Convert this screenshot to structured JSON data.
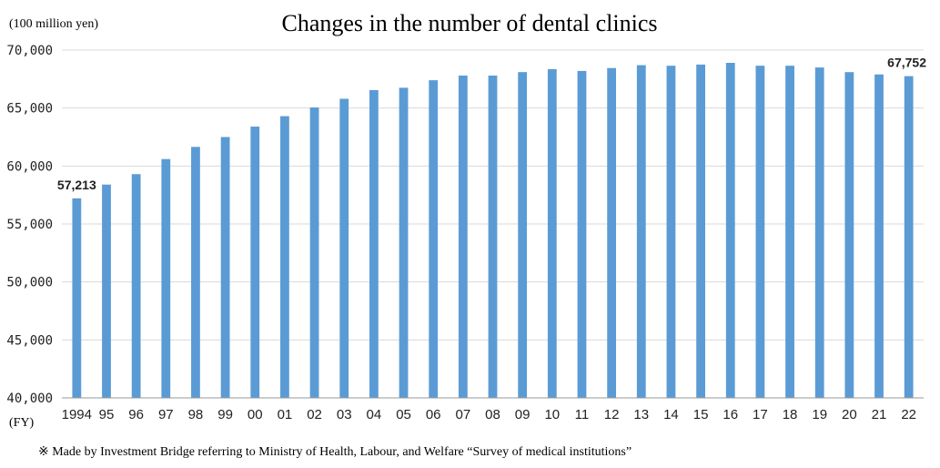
{
  "chart_data": {
    "type": "bar",
    "title": "Changes in the number of dental clinics",
    "unit_label": "(100 million yen)",
    "xlabel": "(FY)",
    "ylabel": "",
    "ylim": [
      40000,
      70000
    ],
    "yticks": [
      40000,
      45000,
      50000,
      55000,
      60000,
      65000,
      70000
    ],
    "ytick_labels": [
      "40,000",
      "45,000",
      "50,000",
      "55,000",
      "60,000",
      "65,000",
      "70,000"
    ],
    "grid": true,
    "legend": "none",
    "bar_color": "#5b9bd5",
    "categories": [
      "1994",
      "95",
      "96",
      "97",
      "98",
      "99",
      "00",
      "01",
      "02",
      "03",
      "04",
      "05",
      "06",
      "07",
      "08",
      "09",
      "10",
      "11",
      "12",
      "13",
      "14",
      "15",
      "16",
      "17",
      "18",
      "19",
      "20",
      "21",
      "22"
    ],
    "values": [
      57213,
      58400,
      59300,
      60600,
      61650,
      62500,
      63400,
      64300,
      65050,
      65800,
      66550,
      66750,
      67400,
      67800,
      67800,
      68100,
      68350,
      68200,
      68450,
      68700,
      68650,
      68750,
      68900,
      68650,
      68650,
      68500,
      68100,
      67900,
      67752
    ],
    "data_labels": [
      {
        "index": 0,
        "text": "57,213"
      },
      {
        "index": 28,
        "text": "67,752"
      }
    ]
  },
  "footnote": "※ Made by Investment Bridge referring to Ministry of Health, Labour, and Welfare “Survey of medical institutions”"
}
